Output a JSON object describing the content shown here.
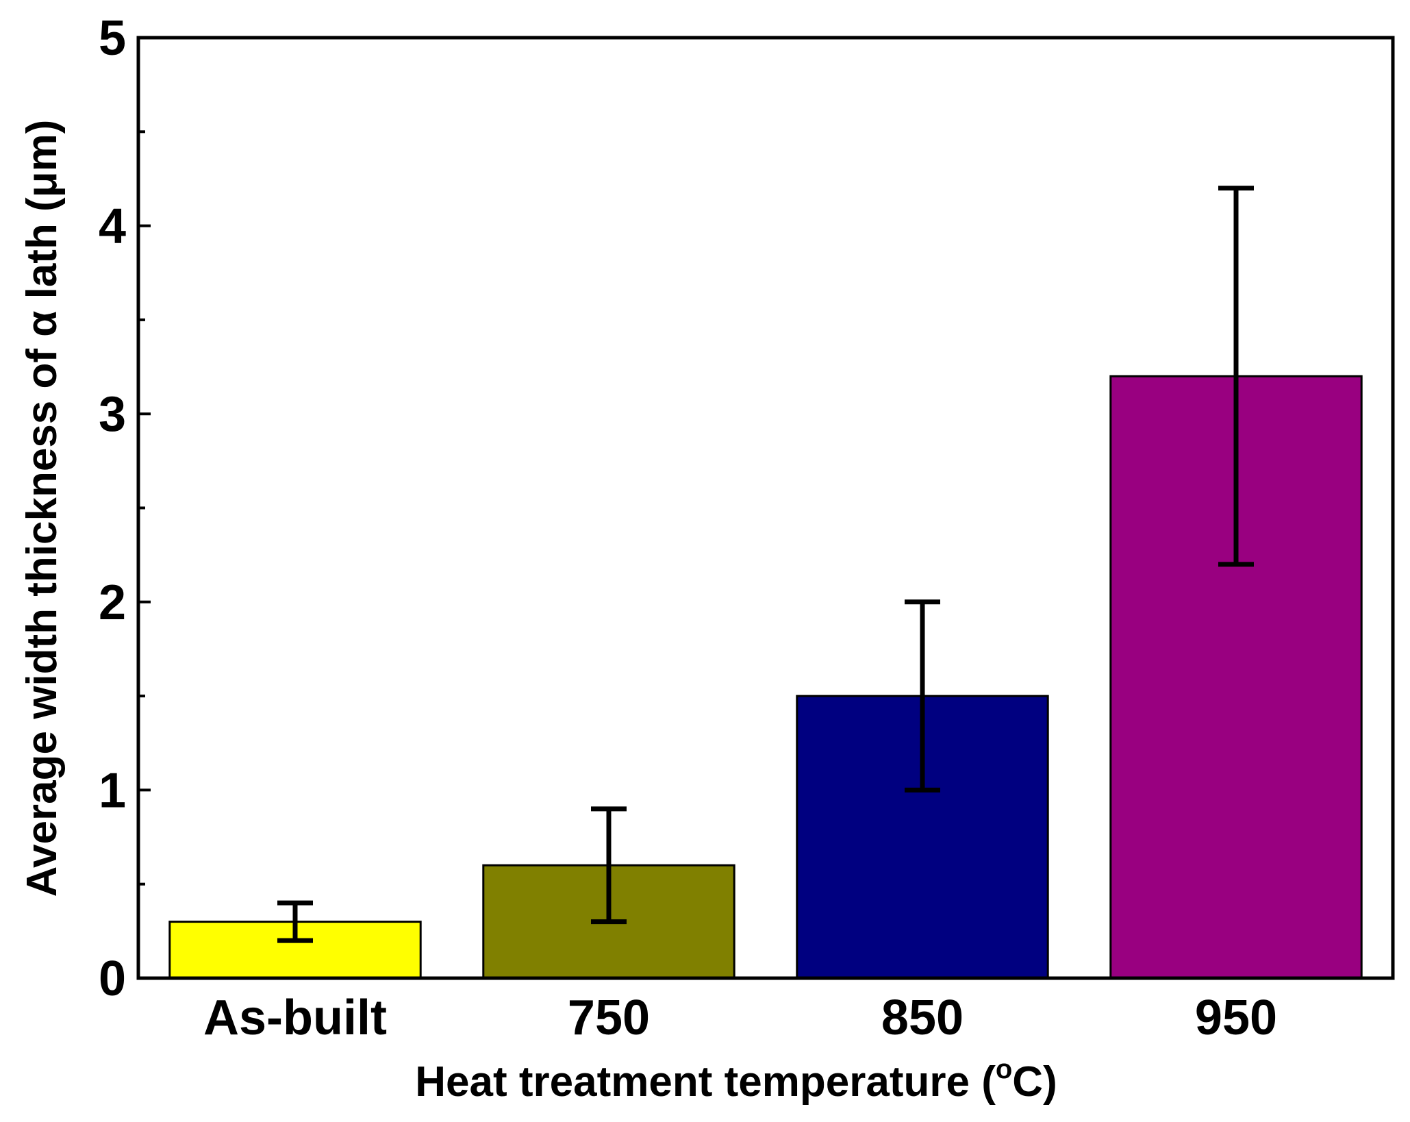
{
  "chart_data": {
    "type": "bar",
    "title": "",
    "xlabel": "Heat treatment temperature (",
    "xlabel_degree": "o",
    "xlabel_unit": "C)",
    "ylabel": "Average width thickness of α lath (μm)",
    "categories": [
      "As-built",
      "750",
      "850",
      "950"
    ],
    "values": [
      0.3,
      0.6,
      1.5,
      3.2
    ],
    "error_low": [
      0.2,
      0.3,
      1.0,
      2.2
    ],
    "error_high": [
      0.4,
      0.9,
      2.0,
      4.2
    ],
    "colors": [
      "#ffff00",
      "#808000",
      "#000080",
      "#990080"
    ],
    "ylim": [
      0,
      5
    ],
    "yticks": [
      "0",
      "1",
      "2",
      "3",
      "4",
      "5"
    ],
    "grid": false,
    "legend": "none"
  }
}
